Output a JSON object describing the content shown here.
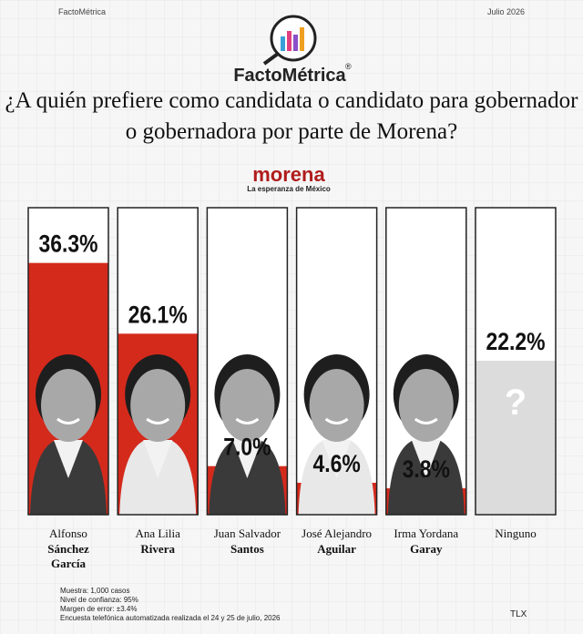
{
  "header": {
    "brand": "FactoMétrica",
    "date": "Julio 2026"
  },
  "logo": {
    "name": "FactoMétrica",
    "mark": "®"
  },
  "party": {
    "name": "morena",
    "slogan": "La esperanza de México"
  },
  "chart_data": {
    "type": "bar",
    "title": "¿A quién prefiere como candidata o candidato para gobernador o gobernadora por parte de Morena?",
    "categories": [
      {
        "given": "Alfonso",
        "surname": "Sánchez García"
      },
      {
        "given": "Ana Lilia",
        "surname": "Rivera"
      },
      {
        "given": "Juan Salvador",
        "surname": "Santos"
      },
      {
        "given": "José Alejandro",
        "surname": "Aguilar"
      },
      {
        "given": "Irma Yordana",
        "surname": "Garay"
      },
      {
        "given": "Ninguno"
      }
    ],
    "values": [
      36.3,
      26.1,
      7.0,
      4.6,
      3.8,
      22.2
    ],
    "value_labels": [
      "36.3%",
      "26.1%",
      "7.0%",
      "4.6%",
      "3.8%",
      "22.2%"
    ],
    "colors": [
      "#d42a1c",
      "#d42a1c",
      "#d42a1c",
      "#d42a1c",
      "#d42a1c",
      "#dcdcdc"
    ],
    "placeholder": "?"
  },
  "footer": {
    "notes": [
      "Muestra: 1,000 casos",
      "Nivel de confianza: 95%",
      "Margen de error: ±3.4%",
      "Encuesta telefónica automatizada realizada el 24 y 25 de julio, 2026"
    ],
    "tag": "TLX"
  }
}
